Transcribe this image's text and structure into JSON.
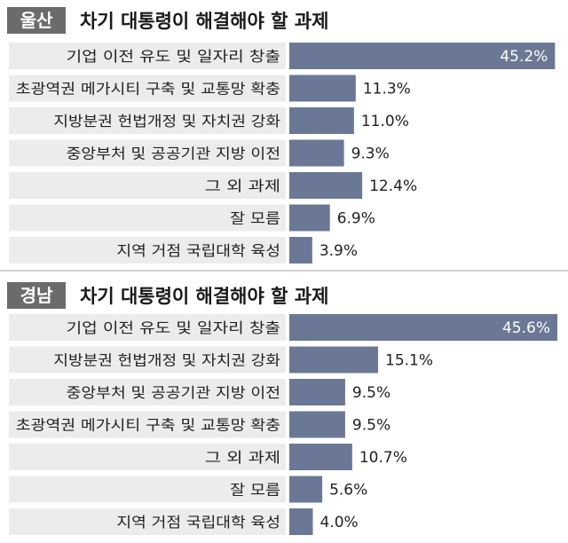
{
  "colors": {
    "bar": "#6a7895",
    "label_bg": "#ececec",
    "tag_bg": "#6b6b6b",
    "separator": "#d0d0d0"
  },
  "chart_data": [
    {
      "type": "bar",
      "orientation": "horizontal",
      "region": "울산",
      "title": "차기 대통령이 해결해야 할 과제",
      "unit": "%",
      "categories": [
        "기업 이전 유도 및 일자리 창출",
        "초광역권 메가시티 구축 및 교통망 확충",
        "지방분권 헌법개정 및 자치권 강화",
        "중앙부처 및 공공기관 지방 이전",
        "그 외 과제",
        "잘 모름",
        "지역 거점 국립대학 육성"
      ],
      "values": [
        45.2,
        11.3,
        11.0,
        9.3,
        12.4,
        6.9,
        3.9
      ],
      "value_labels": [
        "45.2%",
        "11.3%",
        "11.0%",
        "9.3%",
        "12.4%",
        "6.9%",
        "3.9%"
      ]
    },
    {
      "type": "bar",
      "orientation": "horizontal",
      "region": "경남",
      "title": "차기 대통령이 해결해야 할 과제",
      "unit": "%",
      "categories": [
        "기업 이전 유도 및 일자리 창출",
        "지방분권 헌법개정 및 자치권 강화",
        "중앙부처 및 공공기관 지방 이전",
        "초광역권 메가시티 구축 및 교통망 확충",
        "그 외 과제",
        "잘 모름",
        "지역 거점 국립대학 육성"
      ],
      "values": [
        45.6,
        15.1,
        9.5,
        9.5,
        10.7,
        5.6,
        4.0
      ],
      "value_labels": [
        "45.6%",
        "15.1%",
        "9.5%",
        "9.5%",
        "10.7%",
        "5.6%",
        "4.0%"
      ]
    }
  ]
}
